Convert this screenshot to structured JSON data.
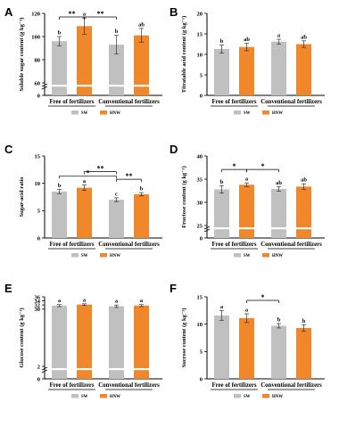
{
  "colors": {
    "SW": "#c0c0c0",
    "HNW": "#f0872a"
  },
  "legend": [
    "SW",
    "HNW"
  ],
  "groups": [
    "Free of fertilizers",
    "Conventional fertilizers"
  ],
  "chart_data": [
    {
      "panel": "A",
      "type": "bar",
      "ylabel": "Soluble sugar content (g kg⁻¹)",
      "ylim": [
        0,
        120
      ],
      "ticks": [
        0,
        60,
        80,
        100,
        120
      ],
      "axis_break": true,
      "categories": [
        "Free of fertilizers",
        "Conventional fertilizers"
      ],
      "series": [
        {
          "name": "SW",
          "values": [
            96,
            93
          ],
          "errors": [
            4,
            8
          ]
        },
        {
          "name": "HNW",
          "values": [
            109,
            101
          ],
          "errors": [
            7,
            6
          ]
        }
      ],
      "letters": [
        [
          "b",
          "a"
        ],
        [
          "b",
          "ab"
        ]
      ],
      "significance": [
        {
          "from": 0,
          "to": 1,
          "label": "**"
        },
        {
          "from": 1,
          "to": 2,
          "label": "**"
        }
      ],
      "legend": "bottom"
    },
    {
      "panel": "B",
      "type": "bar",
      "ylabel": "Titratable acid content (g kg⁻¹)",
      "ylim": [
        0,
        20
      ],
      "ticks": [
        0,
        5,
        10,
        15,
        20
      ],
      "axis_break": false,
      "categories": [
        "Free of fertilizers",
        "Conventional fertilizers"
      ],
      "series": [
        {
          "name": "SW",
          "values": [
            11.3,
            13.1
          ],
          "errors": [
            1.0,
            0.6
          ]
        },
        {
          "name": "HNW",
          "values": [
            11.8,
            12.5
          ],
          "errors": [
            0.9,
            0.8
          ]
        }
      ],
      "letters": [
        [
          "b",
          "ab"
        ],
        [
          "a",
          "ab"
        ]
      ],
      "significance": [],
      "legend": "bottom"
    },
    {
      "panel": "C",
      "type": "bar",
      "ylabel": "Sugar-acid ratio",
      "ylim": [
        0,
        15
      ],
      "ticks": [
        0,
        5,
        10,
        15
      ],
      "axis_break": false,
      "categories": [
        "Free of fertilizers",
        "Conventional fertilizers"
      ],
      "series": [
        {
          "name": "SW",
          "values": [
            8.5,
            7.0
          ],
          "errors": [
            0.4,
            0.35
          ]
        },
        {
          "name": "HNW",
          "values": [
            9.2,
            8.0
          ],
          "errors": [
            0.5,
            0.3
          ]
        }
      ],
      "letters": [
        [
          "b",
          "a"
        ],
        [
          "c",
          "b"
        ]
      ],
      "significance": [
        {
          "from": 0,
          "to": 2,
          "label": "*"
        },
        {
          "from": 1,
          "to": 2,
          "label": "**"
        },
        {
          "from": 2,
          "to": 3,
          "label": "**"
        }
      ],
      "legend": "bottom"
    },
    {
      "panel": "D",
      "type": "bar",
      "ylabel": "Fructose content (g kg⁻¹)",
      "ylim": [
        0,
        40
      ],
      "ticks": [
        0,
        25,
        30,
        35,
        40
      ],
      "axis_break": true,
      "categories": [
        "Free of fertilizers",
        "Conventional fertilizers"
      ],
      "series": [
        {
          "name": "SW",
          "values": [
            32.8,
            32.9
          ],
          "errors": [
            0.8,
            0.5
          ]
        },
        {
          "name": "HNW",
          "values": [
            33.8,
            33.4
          ],
          "errors": [
            0.4,
            0.6
          ]
        }
      ],
      "letters": [
        [
          "b",
          "a"
        ],
        [
          "ab",
          "ab"
        ]
      ],
      "significance": [
        {
          "from": 0,
          "to": 1,
          "label": "*"
        },
        {
          "from": 1,
          "to": 2,
          "label": "*"
        }
      ],
      "legend": "bottom"
    },
    {
      "panel": "E",
      "type": "bar",
      "ylabel": "Glucose content (g kg⁻¹)",
      "ylim": [
        0,
        36
      ],
      "ticks": [
        0,
        2,
        30,
        32,
        34,
        36
      ],
      "axis_break": true,
      "categories": [
        "Free of fertilizers",
        "Conventional fertilizers"
      ],
      "series": [
        {
          "name": "SW",
          "values": [
            31.7,
            31.4
          ],
          "errors": [
            0.5,
            0.6
          ]
        },
        {
          "name": "HNW",
          "values": [
            32.2,
            31.7
          ],
          "errors": [
            0.4,
            0.5
          ]
        }
      ],
      "letters": [
        [
          "a",
          "a"
        ],
        [
          "a",
          "a"
        ]
      ],
      "significance": [],
      "legend": "bottom"
    },
    {
      "panel": "F",
      "type": "bar",
      "ylabel": "Sucrose content (g kg⁻¹)",
      "ylim": [
        0,
        15
      ],
      "ticks": [
        0,
        5,
        10,
        15
      ],
      "axis_break": false,
      "categories": [
        "Free of fertilizers",
        "Conventional fertilizers"
      ],
      "series": [
        {
          "name": "SW",
          "values": [
            11.6,
            9.7
          ],
          "errors": [
            0.9,
            0.4
          ]
        },
        {
          "name": "HNW",
          "values": [
            11.1,
            9.3
          ],
          "errors": [
            0.8,
            0.6
          ]
        }
      ],
      "letters": [
        [
          "a",
          "a"
        ],
        [
          "b",
          "b"
        ]
      ],
      "significance": [
        {
          "from": 1,
          "to": 2,
          "label": "*"
        }
      ],
      "legend": "bottom"
    }
  ]
}
